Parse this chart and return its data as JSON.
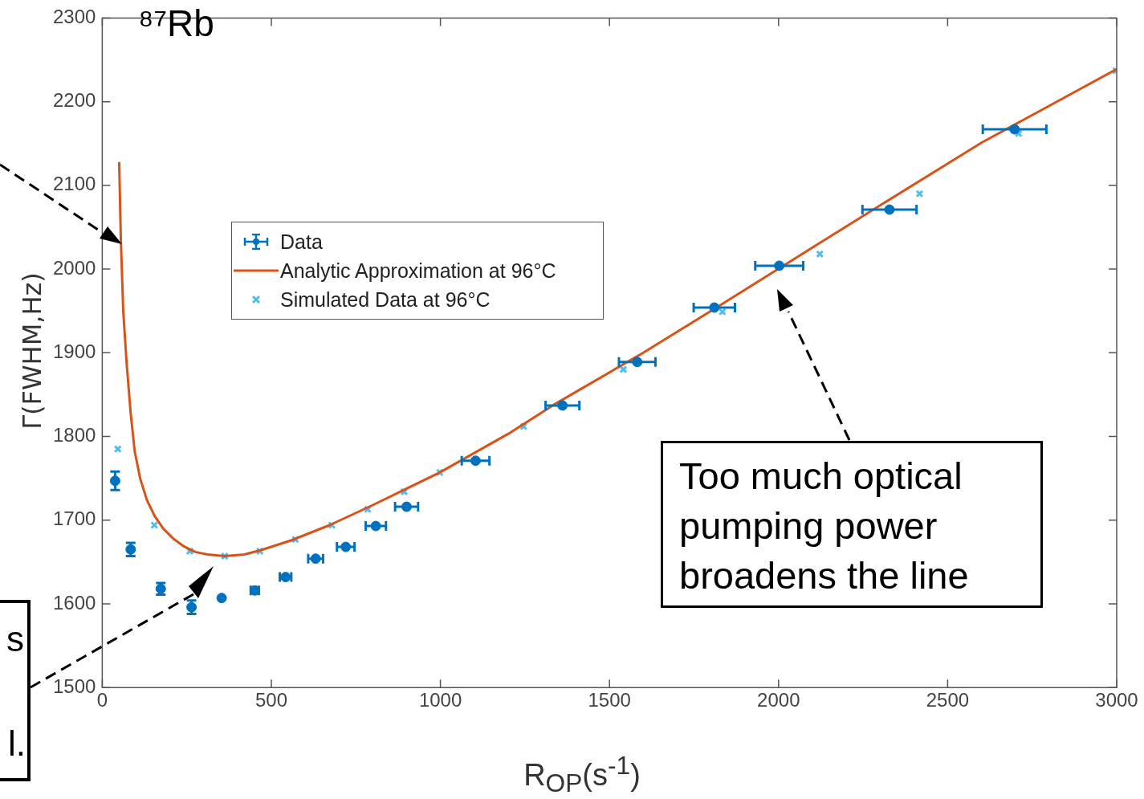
{
  "chart_data": {
    "type": "scatter",
    "xlabel": "R$_{OP}$(s$^{-1}$)",
    "ylabel": "Γ(FWHM,Hz)",
    "xlim": [
      0,
      3000
    ],
    "xticks": [
      0,
      500,
      1000,
      1500,
      2000,
      2500,
      3000
    ],
    "ylim": [
      1500,
      2300
    ],
    "yticks": [
      1500,
      1600,
      1700,
      1800,
      1900,
      2000,
      2100,
      2200,
      2300
    ],
    "grid": false,
    "legend": "top left",
    "annotations": [
      "⁸⁷Rb",
      "Too much optical pumping power broadens the line",
      "s",
      "l."
    ],
    "series": [
      {
        "name": "Data",
        "type": "scatter",
        "color": "#0072bd",
        "marker": "circle",
        "x": [
          38,
          84,
          173,
          264,
          353,
          451,
          542,
          631,
          720,
          809,
          900,
          1104,
          1361,
          1582,
          1810,
          2002,
          2328,
          2698
        ],
        "values": [
          1747,
          1665,
          1618,
          1596,
          1607,
          1616,
          1632,
          1654,
          1668,
          1693,
          1716,
          1771,
          1837,
          1889,
          1954,
          2004,
          2071,
          2167
        ],
        "errors": [
          11,
          8,
          7,
          8,
          null,
          null,
          null,
          null,
          null,
          null,
          null,
          null,
          null,
          null,
          null,
          null,
          null,
          null
        ],
        "xerrors": [
          null,
          null,
          null,
          null,
          null,
          12,
          17,
          22,
          26,
          30,
          34,
          41,
          50,
          54,
          61,
          71,
          80,
          94
        ]
      },
      {
        "name": "Analytic Approximation at 96°C",
        "type": "line",
        "color": "#d95319",
        "marker": "none",
        "line_style": "solid",
        "x": [
          50,
          55,
          62,
          72,
          84,
          96,
          112,
          132,
          155,
          180,
          210,
          240,
          275,
          312,
          362,
          420,
          468,
          560,
          672,
          800,
          998,
          1200,
          1344,
          1600,
          1824,
          2050,
          2304,
          2600,
          3000
        ],
        "values": [
          2128,
          2034,
          1950,
          1888,
          1828,
          1782,
          1750,
          1724,
          1705,
          1690,
          1678,
          1669,
          1662,
          1659,
          1657,
          1659,
          1664,
          1676,
          1694,
          1718,
          1757,
          1803,
          1840,
          1900,
          1956,
          2013,
          2077,
          2151,
          2239
        ]
      },
      {
        "name": "Simulated Data at 96°C",
        "type": "scatter",
        "color": "#4dbeee",
        "marker": "cross",
        "x": [
          46,
          154,
          259,
          362,
          466,
          571,
          679,
          785,
          893,
          998,
          1246,
          1541,
          1834,
          2122,
          2417,
          2710,
          2998
        ],
        "values": [
          1785,
          1694,
          1663,
          1657,
          1663,
          1677,
          1694,
          1713,
          1734,
          1757,
          1812,
          1880,
          1949,
          2018,
          2090,
          2162,
          2237
        ]
      }
    ]
  }
}
